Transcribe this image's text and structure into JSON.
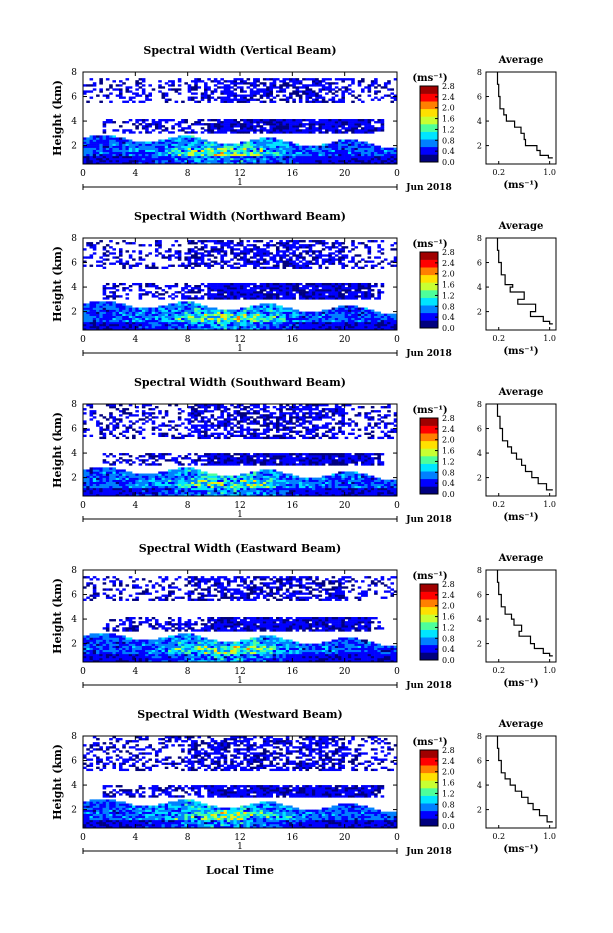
{
  "figure": {
    "shared_xlabel": "Local Time",
    "colorbar_unit": "(ms⁻¹)",
    "colorbar_ticks": [
      "2.8",
      "2.4",
      "2.0",
      "1.6",
      "1.2",
      "0.8",
      "0.4",
      "0.0"
    ],
    "colorbar_colors": [
      "#00007f",
      "#0000ff",
      "#0080ff",
      "#00e5ff",
      "#4dff9a",
      "#c8ff32",
      "#ffe000",
      "#ff7f00",
      "#ff0000",
      "#a00000"
    ],
    "date_label": "Jun 2018",
    "day_label": "1",
    "avg_title": "Average",
    "avg_unit": "(ms⁻¹)"
  },
  "chart_data": [
    {
      "type": "heatmap",
      "title": "Spectral Width (Vertical Beam)",
      "ylabel": "Height (km)",
      "xlim": [
        0,
        24
      ],
      "ylim": [
        0.5,
        8
      ],
      "xticks": [
        "0",
        "4",
        "8",
        "12",
        "16",
        "20",
        "0"
      ],
      "yticks": [
        "2",
        "4",
        "6",
        "8"
      ],
      "colorbar_range": [
        0.0,
        2.8
      ],
      "upper_layer_km": [
        5.5,
        7.5
      ],
      "mid_layer_km": [
        3.0,
        4.2
      ],
      "peak_spectral_width_ms": 2.4,
      "average_profile": {
        "title": "Average",
        "xlabel": "(ms⁻¹)",
        "xlim": [
          0.0,
          1.1
        ],
        "xticks": [
          "0.2",
          "1.0"
        ],
        "yticks": [
          "2",
          "4",
          "6",
          "8"
        ],
        "ylim": [
          0.5,
          8
        ],
        "height_km": [
          8.0,
          7.0,
          6.0,
          5.0,
          4.5,
          4.0,
          3.5,
          3.0,
          2.5,
          2.0,
          1.6,
          1.2,
          1.0
        ],
        "width_ms": [
          0.18,
          0.2,
          0.22,
          0.28,
          0.32,
          0.45,
          0.55,
          0.6,
          0.62,
          0.8,
          0.85,
          0.98,
          1.05
        ]
      }
    },
    {
      "type": "heatmap",
      "title": "Spectral Width (Northward Beam)",
      "ylabel": "Height (km)",
      "xlim": [
        0,
        24
      ],
      "ylim": [
        0.5,
        8
      ],
      "xticks": [
        "0",
        "4",
        "8",
        "12",
        "16",
        "20",
        "0"
      ],
      "yticks": [
        "2",
        "4",
        "6",
        "8"
      ],
      "colorbar_range": [
        0.0,
        2.8
      ],
      "upper_layer_km": [
        5.5,
        7.8
      ],
      "mid_layer_km": [
        3.0,
        4.3
      ],
      "peak_spectral_width_ms": 2.0,
      "average_profile": {
        "title": "Average",
        "xlabel": "(ms⁻¹)",
        "xlim": [
          0.0,
          1.1
        ],
        "xticks": [
          "0.2",
          "1.0"
        ],
        "yticks": [
          "2",
          "4",
          "6",
          "8"
        ],
        "ylim": [
          0.5,
          8
        ],
        "height_km": [
          8.0,
          7.0,
          6.0,
          5.0,
          4.2,
          4.0,
          3.6,
          3.0,
          2.6,
          2.0,
          1.6,
          1.2,
          1.0
        ],
        "width_ms": [
          0.18,
          0.2,
          0.24,
          0.3,
          0.42,
          0.38,
          0.6,
          0.5,
          0.78,
          0.7,
          0.9,
          1.0,
          1.05
        ]
      }
    },
    {
      "type": "heatmap",
      "title": "Spectral Width (Southward Beam)",
      "ylabel": "Height (km)",
      "xlim": [
        0,
        24
      ],
      "ylim": [
        0.5,
        8
      ],
      "xticks": [
        "0",
        "4",
        "8",
        "12",
        "16",
        "20",
        "0"
      ],
      "yticks": [
        "2",
        "4",
        "6",
        "8"
      ],
      "colorbar_range": [
        0.0,
        2.8
      ],
      "upper_layer_km": [
        5.2,
        8.0
      ],
      "mid_layer_km": [
        3.0,
        4.0
      ],
      "peak_spectral_width_ms": 2.4,
      "average_profile": {
        "title": "Average",
        "xlabel": "(ms⁻¹)",
        "xlim": [
          0.0,
          1.1
        ],
        "xticks": [
          "0.2",
          "1.0"
        ],
        "yticks": [
          "2",
          "4",
          "6",
          "8"
        ],
        "ylim": [
          0.5,
          8
        ],
        "height_km": [
          8.0,
          7.0,
          6.0,
          5.0,
          4.5,
          4.0,
          3.5,
          3.0,
          2.5,
          2.0,
          1.5,
          1.0
        ],
        "width_ms": [
          0.18,
          0.22,
          0.26,
          0.34,
          0.4,
          0.48,
          0.56,
          0.62,
          0.72,
          0.82,
          0.95,
          1.05
        ]
      }
    },
    {
      "type": "heatmap",
      "title": "Spectral Width (Eastward Beam)",
      "ylabel": "Height (km)",
      "xlim": [
        0,
        24
      ],
      "ylim": [
        0.5,
        8
      ],
      "xticks": [
        "0",
        "4",
        "8",
        "12",
        "16",
        "20",
        "0"
      ],
      "yticks": [
        "2",
        "4",
        "6",
        "8"
      ],
      "colorbar_range": [
        0.0,
        2.8
      ],
      "upper_layer_km": [
        5.5,
        7.5
      ],
      "mid_layer_km": [
        3.0,
        4.2
      ],
      "peak_spectral_width_ms": 2.4,
      "average_profile": {
        "title": "Average",
        "xlabel": "(ms⁻¹)",
        "xlim": [
          0.0,
          1.1
        ],
        "xticks": [
          "0.2",
          "1.0"
        ],
        "yticks": [
          "2",
          "4",
          "6",
          "8"
        ],
        "ylim": [
          0.5,
          8
        ],
        "height_km": [
          8.0,
          7.0,
          6.0,
          5.0,
          4.4,
          4.0,
          3.5,
          3.0,
          2.6,
          2.0,
          1.6,
          1.2,
          1.0
        ],
        "width_ms": [
          0.18,
          0.2,
          0.24,
          0.3,
          0.4,
          0.44,
          0.56,
          0.52,
          0.7,
          0.76,
          0.9,
          1.0,
          1.05
        ]
      }
    },
    {
      "type": "heatmap",
      "title": "Spectral Width (Westward Beam)",
      "ylabel": "Height (km)",
      "xlabel": "Local Time",
      "xlim": [
        0,
        24
      ],
      "ylim": [
        0.5,
        8
      ],
      "xticks": [
        "0",
        "4",
        "8",
        "12",
        "16",
        "20",
        "0"
      ],
      "yticks": [
        "2",
        "4",
        "6",
        "8"
      ],
      "colorbar_range": [
        0.0,
        2.8
      ],
      "upper_layer_km": [
        5.2,
        8.0
      ],
      "mid_layer_km": [
        3.0,
        4.0
      ],
      "peak_spectral_width_ms": 2.4,
      "average_profile": {
        "title": "Average",
        "xlabel": "(ms⁻¹)",
        "xlim": [
          0.0,
          1.1
        ],
        "xticks": [
          "0.2",
          "1.0"
        ],
        "yticks": [
          "2",
          "4",
          "6",
          "8"
        ],
        "ylim": [
          0.5,
          8
        ],
        "height_km": [
          8.0,
          7.0,
          6.0,
          5.0,
          4.5,
          4.0,
          3.5,
          3.0,
          2.5,
          2.0,
          1.5,
          1.0
        ],
        "width_ms": [
          0.18,
          0.2,
          0.24,
          0.3,
          0.38,
          0.46,
          0.56,
          0.66,
          0.74,
          0.84,
          0.96,
          1.05
        ]
      }
    }
  ]
}
